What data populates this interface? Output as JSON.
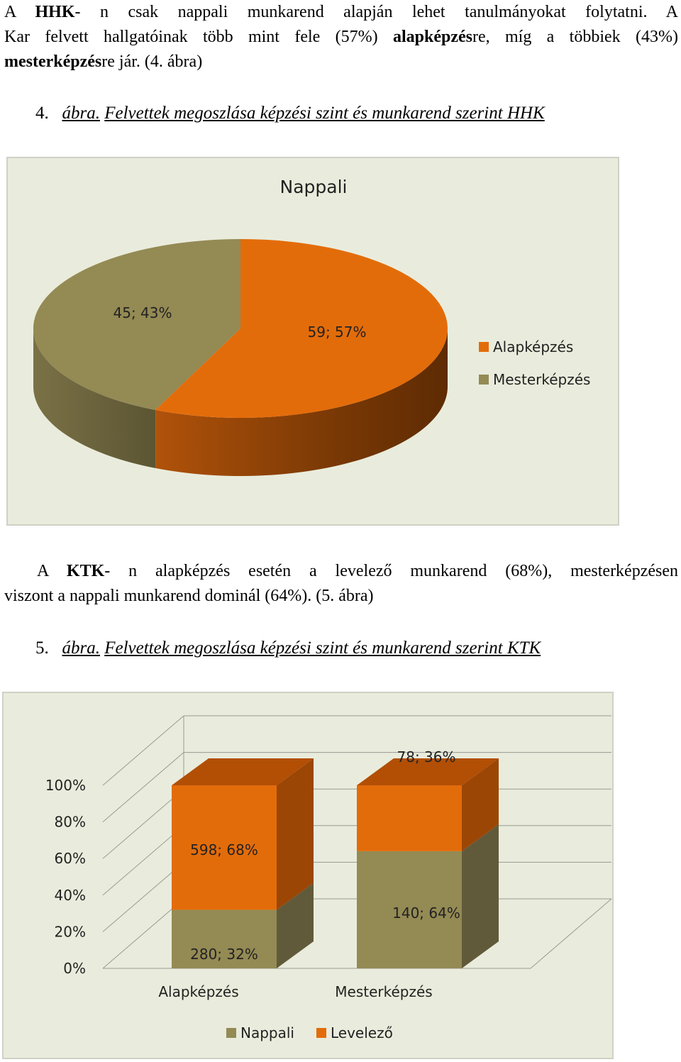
{
  "paragraph1": {
    "line1": [
      "A ",
      "HHK",
      "- n csak nappali munkarend alapján lehet tanulmányokat folytatni. A"
    ],
    "line2": [
      "Kar felvett hallgatóinak több mint fele (57%) ",
      "alapképzés",
      "re, míg a többiek (43%)"
    ],
    "line3": [
      "mesterképzés",
      "re jár. (4. ábra)"
    ]
  },
  "caption4": {
    "num": "4.",
    "abra": "ábra.",
    "text": "Felvettek megoszlása képzési szint és munkarend szerint HHK"
  },
  "paragraph2": {
    "line1": [
      "A ",
      "KTK",
      "- n alapképzés esetén a levelező munkarend (68%), mesterképzésen"
    ],
    "line2": "viszont a nappali munkarend dominál (64%). (5. ábra)"
  },
  "caption5": {
    "num": "5.",
    "abra": "ábra.",
    "text": "Felvettek megoszlása képzési szint és munkarend szerint KTK"
  },
  "colors": {
    "orange": "#e36c0a",
    "olive": "#948a54",
    "background": "#e9ecdc"
  },
  "chart_data": [
    {
      "type": "pie",
      "title": "Nappali",
      "slices": [
        {
          "name": "Alapképzés",
          "value": 59,
          "percent": 57,
          "label": "59; 57%",
          "color": "#e36c0a"
        },
        {
          "name": "Mesterképzés",
          "value": 45,
          "percent": 43,
          "label": "45; 43%",
          "color": "#948a54"
        }
      ],
      "legend": [
        "Alapképzés",
        "Mesterképzés"
      ],
      "legend_position": "right"
    },
    {
      "type": "bar",
      "stacked": "percent",
      "categories": [
        "Alapképzés",
        "Mesterképzés"
      ],
      "series": [
        {
          "name": "Nappali",
          "values": [
            280,
            140
          ],
          "percents": [
            32,
            64
          ],
          "labels": [
            "280; 32%",
            "140; 64%"
          ],
          "color": "#948a54"
        },
        {
          "name": "Levelező",
          "values": [
            598,
            78
          ],
          "percents": [
            68,
            36
          ],
          "labels": [
            "598; 68%",
            "78; 36%"
          ],
          "color": "#e36c0a"
        }
      ],
      "yticks": [
        "0%",
        "20%",
        "40%",
        "60%",
        "80%",
        "100%"
      ],
      "ylim": [
        0,
        100
      ],
      "legend_position": "bottom"
    }
  ]
}
